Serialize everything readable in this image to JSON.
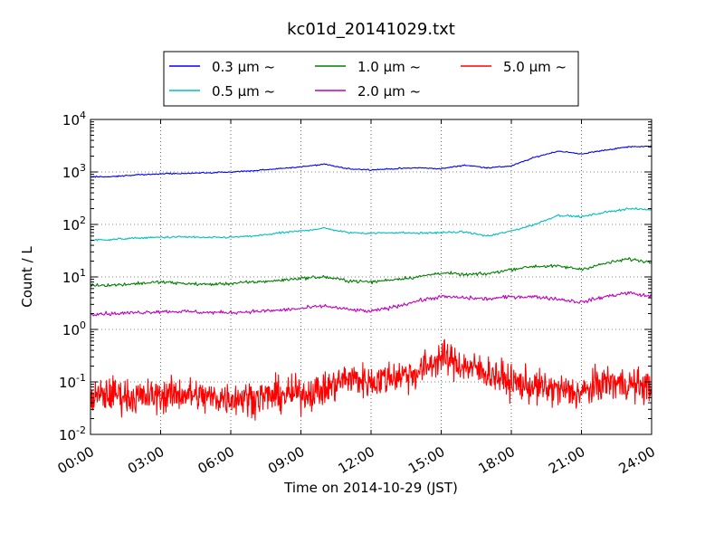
{
  "chart_data": {
    "type": "line",
    "title": "kc01d_20141029.txt",
    "xlabel": "Time on 2014-10-29 (JST)",
    "ylabel": "Count / L",
    "x_unit": "hours",
    "xlim": [
      0,
      24
    ],
    "ylim": [
      0.01,
      10000
    ],
    "yscale": "log",
    "grid": true,
    "legend_position": "top",
    "x_ticks": [
      "00:00",
      "03:00",
      "06:00",
      "09:00",
      "12:00",
      "15:00",
      "18:00",
      "21:00",
      "24:00"
    ],
    "y_ticks": [
      {
        "base": "10",
        "exp": "-2"
      },
      {
        "base": "10",
        "exp": "-1"
      },
      {
        "base": "10",
        "exp": "0"
      },
      {
        "base": "10",
        "exp": "1"
      },
      {
        "base": "10",
        "exp": "2"
      },
      {
        "base": "10",
        "exp": "3"
      },
      {
        "base": "10",
        "exp": "4"
      }
    ],
    "x": [
      0,
      1,
      2,
      3,
      4,
      5,
      6,
      7,
      8,
      9,
      10,
      11,
      12,
      13,
      14,
      15,
      16,
      17,
      18,
      19,
      20,
      21,
      22,
      23,
      24
    ],
    "series": [
      {
        "name": "0.3 µm ~",
        "color": "#0000ff",
        "values": [
          800,
          820,
          880,
          920,
          940,
          960,
          1000,
          1050,
          1150,
          1250,
          1400,
          1150,
          1100,
          1150,
          1200,
          1150,
          1350,
          1200,
          1300,
          1900,
          2500,
          2200,
          2600,
          3000,
          3100
        ]
      },
      {
        "name": "0.5 µm ~",
        "color": "#00bfbf",
        "values": [
          50,
          52,
          55,
          57,
          58,
          56,
          57,
          60,
          68,
          75,
          85,
          70,
          68,
          70,
          68,
          70,
          72,
          60,
          75,
          100,
          150,
          140,
          170,
          200,
          190
        ]
      },
      {
        "name": "1.0 µm ~",
        "color": "#008000",
        "values": [
          7,
          7,
          7.5,
          8,
          7.5,
          7.2,
          7.5,
          8,
          8.5,
          9.5,
          10,
          8.5,
          8,
          9,
          10,
          12,
          11,
          11.5,
          14,
          16,
          16,
          14,
          18,
          22,
          19
        ]
      },
      {
        "name": "2.0 µm ~",
        "color": "#bf00bf",
        "values": [
          2,
          2,
          2.1,
          2.2,
          2.2,
          2.1,
          2.1,
          2.2,
          2.3,
          2.5,
          2.8,
          2.4,
          2.2,
          2.7,
          3.5,
          4.2,
          4,
          3.8,
          4.2,
          4.2,
          3.8,
          3.3,
          4.2,
          5,
          4.2
        ]
      },
      {
        "name": "5.0 µm ~",
        "color": "#ff0000",
        "values": [
          0.05,
          0.06,
          0.05,
          0.055,
          0.06,
          0.05,
          0.05,
          0.05,
          0.055,
          0.06,
          0.07,
          0.12,
          0.1,
          0.13,
          0.15,
          0.3,
          0.2,
          0.15,
          0.1,
          0.08,
          0.07,
          0.06,
          0.1,
          0.09,
          0.08
        ]
      }
    ]
  }
}
